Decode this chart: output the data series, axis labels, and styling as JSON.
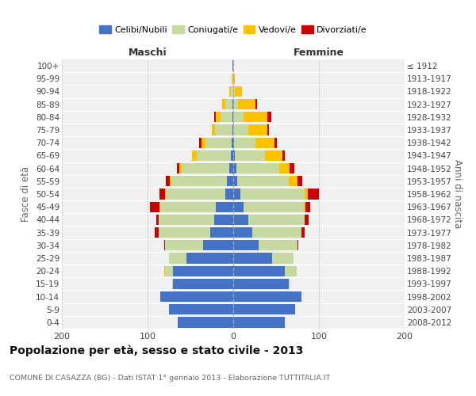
{
  "age_groups": [
    "0-4",
    "5-9",
    "10-14",
    "15-19",
    "20-24",
    "25-29",
    "30-34",
    "35-39",
    "40-44",
    "45-49",
    "50-54",
    "55-59",
    "60-64",
    "65-69",
    "70-74",
    "75-79",
    "80-84",
    "85-89",
    "90-94",
    "95-99",
    "100+"
  ],
  "birth_years": [
    "2008-2012",
    "2003-2007",
    "1998-2002",
    "1993-1997",
    "1988-1992",
    "1983-1987",
    "1978-1982",
    "1973-1977",
    "1968-1972",
    "1963-1967",
    "1958-1962",
    "1953-1957",
    "1948-1952",
    "1943-1947",
    "1938-1942",
    "1933-1937",
    "1928-1932",
    "1923-1927",
    "1918-1922",
    "1913-1917",
    "≤ 1912"
  ],
  "males_celibi": [
    65,
    75,
    85,
    70,
    70,
    55,
    35,
    27,
    22,
    20,
    9,
    7,
    5,
    3,
    2,
    1,
    1,
    1,
    0,
    0,
    1
  ],
  "males_coniugati": [
    0,
    0,
    0,
    1,
    10,
    20,
    45,
    60,
    65,
    65,
    70,
    65,
    55,
    40,
    30,
    20,
    14,
    8,
    3,
    1,
    0
  ],
  "males_vedovi": [
    0,
    0,
    0,
    0,
    1,
    0,
    0,
    0,
    0,
    1,
    1,
    2,
    3,
    5,
    5,
    4,
    5,
    4,
    2,
    1,
    0
  ],
  "males_divorziati": [
    0,
    0,
    0,
    0,
    0,
    0,
    1,
    5,
    3,
    11,
    6,
    5,
    3,
    0,
    3,
    0,
    2,
    0,
    0,
    0,
    0
  ],
  "females_nubili": [
    60,
    72,
    80,
    65,
    60,
    45,
    30,
    22,
    18,
    12,
    8,
    5,
    4,
    2,
    1,
    0,
    0,
    0,
    0,
    0,
    0
  ],
  "females_coniugate": [
    0,
    0,
    0,
    1,
    14,
    25,
    45,
    58,
    65,
    70,
    75,
    60,
    50,
    35,
    25,
    18,
    12,
    6,
    2,
    0,
    0
  ],
  "females_vedove": [
    0,
    0,
    0,
    0,
    0,
    0,
    0,
    0,
    0,
    2,
    4,
    10,
    12,
    20,
    22,
    22,
    28,
    20,
    8,
    2,
    0
  ],
  "females_divorziate": [
    0,
    0,
    0,
    0,
    0,
    0,
    1,
    3,
    5,
    6,
    13,
    6,
    5,
    3,
    3,
    2,
    4,
    2,
    0,
    0,
    0
  ],
  "color_celibi": "#4472c4",
  "color_coniugati": "#c5d9a0",
  "color_vedovi": "#ffc000",
  "color_divorziati": "#cc0000",
  "xlim": 200,
  "title": "Popolazione per età, sesso e stato civile - 2013",
  "subtitle": "COMUNE DI CASAZZA (BG) - Dati ISTAT 1° gennaio 2013 - Elaborazione TUTTITALIA.IT",
  "ylabel_left": "Fasce di età",
  "ylabel_right": "Anni di nascita",
  "label_maschi": "Maschi",
  "label_femmine": "Femmine",
  "legend": [
    "Celibi/Nubili",
    "Coniugati/e",
    "Vedovi/e",
    "Divorziati/e"
  ],
  "bg_color": "#f0f0f0",
  "grid_color": "#ffffff"
}
